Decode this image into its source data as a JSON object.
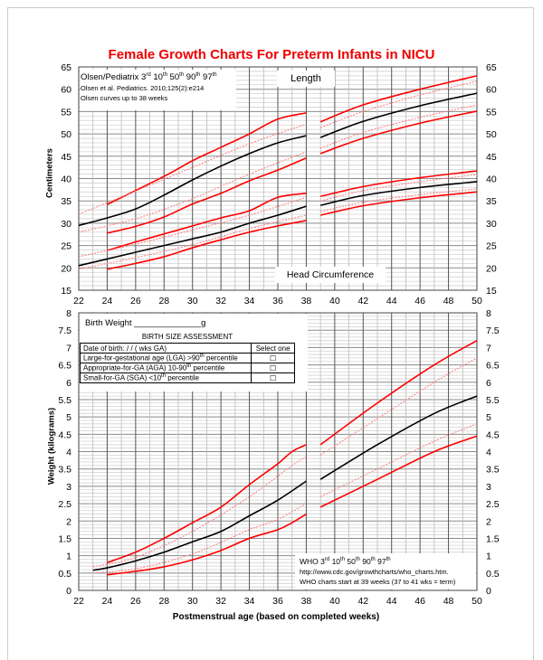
{
  "title": "Female Growth Charts For Preterm Infants in NICU",
  "colors": {
    "percentile_outer": "#ff0000",
    "percentile_inner_dotted": "#ff7a7a",
    "median": "#000000"
  },
  "legend_olsen": {
    "line1": "Olsen/Pediatrix 3rd 10th 50th 90th 97th",
    "line2": "Olsen et al. Pediatrics. 2010;125(2):e214",
    "line3": "Olsen curves up to 38 weeks"
  },
  "labels": {
    "length": "Length",
    "head": "Head Circumference"
  },
  "birth": {
    "weight": "Birth Weight ______________g",
    "heading": "BIRTH SIZE ASSESSMENT",
    "dob": "Date of birth:        /        /         (          wks GA)",
    "select": "Select one",
    "lga": "Large-for-gestational age (LGA)  >90th percentile",
    "aga": "Appropriate-for-GA (AGA)  10-90th percentile",
    "sga": "Small-for-GA (SGA)   <10th percentile",
    "checkbox": "☐"
  },
  "legend_who": {
    "line1": "WHO 3rd 10th 50th 90th 97th",
    "line2": "http://www.cdc.gov/growthcharts/who_charts.htm.",
    "line3": "WHO  charts start at 39 weeks  (37 to 41 wks = term)"
  },
  "chart_data": [
    {
      "type": "line",
      "ylabel": "Centimeters",
      "xlim": [
        22,
        50
      ],
      "ylim": [
        15,
        65
      ],
      "xticks": [
        22,
        24,
        26,
        28,
        30,
        32,
        34,
        36,
        38,
        40,
        42,
        44,
        46,
        48,
        50
      ],
      "yticks": [
        15,
        20,
        25,
        30,
        35,
        40,
        45,
        50,
        55,
        60,
        65
      ],
      "grid": true,
      "series": [
        {
          "group": "Length",
          "source": "Olsen",
          "style": "solid-red",
          "x": [
            24,
            28,
            30,
            32,
            34,
            36,
            38
          ],
          "y": [
            34.2,
            40.5,
            44,
            47,
            50,
            53.3,
            54.7
          ]
        },
        {
          "group": "Length",
          "source": "Olsen",
          "style": "dotted-red",
          "x": [
            22,
            26,
            30,
            34,
            38
          ],
          "y": [
            32,
            37.2,
            42.5,
            47.8,
            52.2
          ]
        },
        {
          "group": "Length",
          "source": "Olsen",
          "style": "black",
          "x": [
            22,
            24,
            26,
            28,
            30,
            32,
            34,
            36,
            38
          ],
          "y": [
            29.5,
            31.2,
            33.2,
            36.3,
            39.7,
            42.8,
            45.6,
            48,
            49.6
          ]
        },
        {
          "group": "Length",
          "source": "Olsen",
          "style": "dotted-red",
          "x": [
            22,
            26,
            30,
            34,
            38
          ],
          "y": [
            28,
            31,
            35.5,
            41,
            46
          ]
        },
        {
          "group": "Length",
          "source": "Olsen",
          "style": "solid-red",
          "x": [
            24,
            26,
            28,
            30,
            32,
            34,
            36,
            38
          ],
          "y": [
            27.8,
            29.3,
            31.4,
            34.3,
            36.7,
            39.5,
            41.9,
            44.6
          ]
        },
        {
          "group": "Head",
          "source": "Olsen",
          "style": "solid-red",
          "x": [
            24,
            26,
            28,
            30,
            32,
            34,
            36,
            38
          ],
          "y": [
            23.9,
            25.8,
            27.6,
            29.4,
            31.2,
            32.8,
            35.8,
            36.7
          ]
        },
        {
          "group": "Head",
          "source": "Olsen",
          "style": "dotted-red",
          "x": [
            22,
            26,
            30,
            34,
            38
          ],
          "y": [
            22.5,
            25.3,
            28.5,
            31.8,
            35.8
          ]
        },
        {
          "group": "Head",
          "source": "Olsen",
          "style": "black",
          "x": [
            22,
            24,
            26,
            28,
            30,
            32,
            34,
            36,
            38
          ],
          "y": [
            20.5,
            22,
            23.5,
            25,
            26.5,
            28,
            30,
            31.8,
            33.8
          ]
        },
        {
          "group": "Head",
          "source": "Olsen",
          "style": "dotted-red",
          "x": [
            22,
            26,
            30,
            34,
            38
          ],
          "y": [
            19.7,
            22.3,
            25.2,
            28.8,
            31.8
          ]
        },
        {
          "group": "Head",
          "source": "Olsen",
          "style": "solid-red",
          "x": [
            24,
            26,
            28,
            30,
            32,
            34,
            36,
            38
          ],
          "y": [
            19.7,
            21,
            22.5,
            24.5,
            26.3,
            28,
            29.4,
            30.6
          ]
        },
        {
          "group": "Length",
          "source": "WHO",
          "style": "solid-red",
          "x": [
            39,
            42,
            46,
            50
          ],
          "y": [
            52.7,
            56.5,
            60,
            63
          ]
        },
        {
          "group": "Length",
          "source": "WHO",
          "style": "dotted-red",
          "x": [
            39,
            42,
            46,
            50
          ],
          "y": [
            51.4,
            55,
            58.7,
            61.8
          ]
        },
        {
          "group": "Length",
          "source": "WHO",
          "style": "black",
          "x": [
            39,
            42,
            46,
            50
          ],
          "y": [
            49.2,
            52.8,
            56.3,
            59.1
          ]
        },
        {
          "group": "Length",
          "source": "WHO",
          "style": "dotted-red",
          "x": [
            39,
            42,
            46,
            50
          ],
          "y": [
            46.8,
            50.3,
            53.7,
            56.5
          ]
        },
        {
          "group": "Length",
          "source": "WHO",
          "style": "solid-red",
          "x": [
            39,
            42,
            46,
            50
          ],
          "y": [
            45.6,
            49,
            52.4,
            55.1
          ]
        },
        {
          "group": "Head",
          "source": "WHO",
          "style": "solid-red",
          "x": [
            39,
            42,
            46,
            50
          ],
          "y": [
            36,
            38.2,
            40.2,
            41.7
          ]
        },
        {
          "group": "Head",
          "source": "WHO",
          "style": "dotted-red",
          "x": [
            39,
            42,
            46,
            50
          ],
          "y": [
            35,
            37.3,
            39.3,
            40.9
          ]
        },
        {
          "group": "Head",
          "source": "WHO",
          "style": "black",
          "x": [
            39,
            42,
            46,
            50
          ],
          "y": [
            34,
            36.2,
            38,
            39.3
          ]
        },
        {
          "group": "Head",
          "source": "WHO",
          "style": "dotted-red",
          "x": [
            39,
            42,
            46,
            50
          ],
          "y": [
            32.6,
            34.7,
            36.4,
            37.7
          ]
        },
        {
          "group": "Head",
          "source": "WHO",
          "style": "solid-red",
          "x": [
            39,
            42,
            46,
            50
          ],
          "y": [
            31.8,
            33.9,
            35.7,
            37
          ]
        }
      ]
    },
    {
      "type": "line",
      "ylabel": "Weight (kilograms)",
      "xlabel": "Postmenstrual age (based on completed weeks)",
      "xlim": [
        22,
        50
      ],
      "ylim": [
        0,
        8
      ],
      "xticks": [
        22,
        24,
        26,
        28,
        30,
        32,
        34,
        36,
        38,
        40,
        42,
        44,
        46,
        48,
        50
      ],
      "yticks": [
        0,
        0.5,
        1,
        1.5,
        2,
        2.5,
        3,
        3.5,
        4,
        4.5,
        5,
        5.5,
        6,
        6.5,
        7,
        7.5,
        8
      ],
      "grid": true,
      "series": [
        {
          "source": "Olsen",
          "style": "solid-red",
          "x": [
            24,
            26,
            28,
            30,
            32,
            34,
            36,
            37,
            38
          ],
          "y": [
            0.8,
            1.1,
            1.5,
            1.95,
            2.4,
            3.05,
            3.65,
            4.0,
            4.2
          ]
        },
        {
          "source": "Olsen",
          "style": "dotted-red",
          "x": [
            23,
            26,
            30,
            34,
            37,
            38
          ],
          "y": [
            0.68,
            0.95,
            1.7,
            2.7,
            3.6,
            3.85
          ]
        },
        {
          "source": "Olsen",
          "style": "black",
          "x": [
            23,
            24,
            26,
            28,
            30,
            32,
            34,
            36,
            38
          ],
          "y": [
            0.58,
            0.65,
            0.85,
            1.1,
            1.4,
            1.7,
            2.15,
            2.6,
            3.15
          ]
        },
        {
          "source": "Olsen",
          "style": "dotted-red",
          "x": [
            23,
            26,
            30,
            34,
            36,
            38
          ],
          "y": [
            0.5,
            0.62,
            1.05,
            1.75,
            2.05,
            2.5
          ]
        },
        {
          "source": "Olsen",
          "style": "solid-red",
          "x": [
            24,
            26,
            28,
            30,
            32,
            34,
            36,
            37,
            38
          ],
          "y": [
            0.45,
            0.55,
            0.68,
            0.88,
            1.15,
            1.5,
            1.75,
            1.95,
            2.2
          ]
        },
        {
          "source": "WHO",
          "style": "solid-red",
          "x": [
            39,
            43,
            47,
            50
          ],
          "y": [
            4.2,
            5.4,
            6.5,
            7.2
          ]
        },
        {
          "source": "WHO",
          "style": "dotted-red",
          "x": [
            39,
            43,
            47,
            50
          ],
          "y": [
            3.9,
            4.95,
            6.0,
            6.7
          ]
        },
        {
          "source": "WHO",
          "style": "black",
          "x": [
            39,
            43,
            47,
            50
          ],
          "y": [
            3.2,
            4.2,
            5.1,
            5.6
          ]
        },
        {
          "source": "WHO",
          "style": "dotted-red",
          "x": [
            39,
            43,
            47,
            50
          ],
          "y": [
            2.7,
            3.5,
            4.3,
            4.8
          ]
        },
        {
          "source": "WHO",
          "style": "solid-red",
          "x": [
            39,
            43,
            47,
            50
          ],
          "y": [
            2.4,
            3.2,
            4.0,
            4.45
          ]
        }
      ]
    }
  ]
}
